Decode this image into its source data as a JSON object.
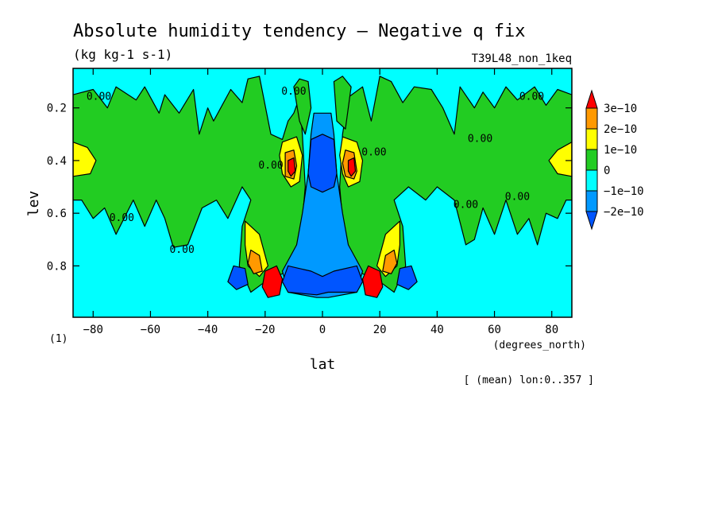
{
  "chart_data": {
    "type": "heatmap",
    "title": "Absolute humidity tendency — Negative q fix",
    "subtitle": "(kg kg-1 s-1)",
    "dataset_label": "T39L48_non_1keq",
    "xlabel": "lat",
    "x_units": "(degrees_north)",
    "ylabel": "lev",
    "y_units": "(1)",
    "region_note": "[ (mean) lon:0..357 ]",
    "xlim": [
      -87,
      87
    ],
    "ylim": [
      0.05,
      0.995
    ],
    "y_inverted": true,
    "x_ticks": [
      -80,
      -60,
      -40,
      -20,
      0,
      20,
      40,
      60,
      80
    ],
    "y_ticks": [
      0.2,
      0.4,
      0.6,
      0.8
    ],
    "x_tick_labels": [
      "−80",
      "−60",
      "−40",
      "−20",
      "0",
      "20",
      "40",
      "60",
      "80"
    ],
    "y_tick_labels": [
      "0.2",
      "0.4",
      "0.6",
      "0.8"
    ],
    "contour_label": "0.00",
    "colorbar": {
      "labels": [
        "3e−10",
        "2e−10",
        "1e−10",
        "0",
        "−1e−10",
        "−2e−10"
      ],
      "colors": [
        "#ff0000",
        "#ff9900",
        "#ffff00",
        "#22cc22",
        "#00ffff",
        "#0099ff",
        "#0055ff"
      ]
    },
    "background_level_color": "#00ffff",
    "regions": [
      {
        "level": "positive",
        "color": "#22cc22",
        "points": [
          [
            -87,
            0.15
          ],
          [
            -80,
            0.13
          ],
          [
            -75,
            0.2
          ],
          [
            -72,
            0.12
          ],
          [
            -65,
            0.17
          ],
          [
            -62,
            0.12
          ],
          [
            -57,
            0.22
          ],
          [
            -55,
            0.15
          ],
          [
            -50,
            0.22
          ],
          [
            -45,
            0.13
          ],
          [
            -43,
            0.3
          ],
          [
            -40,
            0.2
          ],
          [
            -38,
            0.25
          ],
          [
            -32,
            0.13
          ],
          [
            -28,
            0.18
          ],
          [
            -26,
            0.09
          ],
          [
            -22,
            0.08
          ],
          [
            -18,
            0.3
          ],
          [
            -14,
            0.32
          ],
          [
            -12,
            0.25
          ],
          [
            -10,
            0.22
          ],
          [
            -8,
            0.16
          ],
          [
            -7,
            0.3
          ],
          [
            -6,
            0.5
          ],
          [
            -8,
            0.75
          ],
          [
            -12,
            0.82
          ],
          [
            -20,
            0.86
          ],
          [
            -25,
            0.9
          ],
          [
            -29,
            0.8
          ],
          [
            -28,
            0.65
          ],
          [
            -25,
            0.55
          ],
          [
            -28,
            0.5
          ],
          [
            -33,
            0.62
          ],
          [
            -37,
            0.55
          ],
          [
            -42,
            0.58
          ],
          [
            -47,
            0.72
          ],
          [
            -52,
            0.73
          ],
          [
            -55,
            0.62
          ],
          [
            -58,
            0.55
          ],
          [
            -62,
            0.65
          ],
          [
            -66,
            0.55
          ],
          [
            -72,
            0.68
          ],
          [
            -76,
            0.58
          ],
          [
            -80,
            0.62
          ],
          [
            -84,
            0.55
          ],
          [
            -87,
            0.55
          ]
        ]
      },
      {
        "level": "positive",
        "color": "#22cc22",
        "points": [
          [
            87,
            0.15
          ],
          [
            82,
            0.13
          ],
          [
            78,
            0.19
          ],
          [
            74,
            0.12
          ],
          [
            68,
            0.17
          ],
          [
            64,
            0.12
          ],
          [
            60,
            0.2
          ],
          [
            56,
            0.14
          ],
          [
            53,
            0.2
          ],
          [
            48,
            0.12
          ],
          [
            46,
            0.3
          ],
          [
            42,
            0.2
          ],
          [
            38,
            0.13
          ],
          [
            32,
            0.12
          ],
          [
            28,
            0.18
          ],
          [
            24,
            0.1
          ],
          [
            20,
            0.08
          ],
          [
            17,
            0.25
          ],
          [
            14,
            0.12
          ],
          [
            9,
            0.16
          ],
          [
            7,
            0.3
          ],
          [
            6,
            0.5
          ],
          [
            8,
            0.75
          ],
          [
            12,
            0.82
          ],
          [
            20,
            0.86
          ],
          [
            25,
            0.9
          ],
          [
            29,
            0.8
          ],
          [
            28,
            0.65
          ],
          [
            25,
            0.55
          ],
          [
            30,
            0.5
          ],
          [
            36,
            0.55
          ],
          [
            40,
            0.5
          ],
          [
            46,
            0.55
          ],
          [
            50,
            0.72
          ],
          [
            53,
            0.7
          ],
          [
            56,
            0.58
          ],
          [
            60,
            0.68
          ],
          [
            64,
            0.55
          ],
          [
            68,
            0.68
          ],
          [
            72,
            0.62
          ],
          [
            75,
            0.72
          ],
          [
            78,
            0.6
          ],
          [
            82,
            0.62
          ],
          [
            85,
            0.55
          ],
          [
            87,
            0.55
          ]
        ]
      },
      {
        "level": "positive",
        "color": "#22cc22",
        "points": [
          [
            -10,
            0.12
          ],
          [
            -8,
            0.09
          ],
          [
            -5,
            0.1
          ],
          [
            -4,
            0.2
          ],
          [
            -6,
            0.3
          ],
          [
            -8,
            0.25
          ]
        ]
      },
      {
        "level": "positive",
        "color": "#22cc22",
        "points": [
          [
            4,
            0.1
          ],
          [
            7,
            0.08
          ],
          [
            10,
            0.12
          ],
          [
            8,
            0.28
          ],
          [
            5,
            0.25
          ]
        ]
      },
      {
        "level": "1e-10",
        "color": "#ffff00",
        "points": [
          [
            -87,
            0.33
          ],
          [
            -82,
            0.35
          ],
          [
            -79,
            0.4
          ],
          [
            -81,
            0.45
          ],
          [
            -87,
            0.46
          ]
        ]
      },
      {
        "level": "1e-10",
        "color": "#ffff00",
        "points": [
          [
            87,
            0.33
          ],
          [
            82,
            0.36
          ],
          [
            79,
            0.4
          ],
          [
            82,
            0.45
          ],
          [
            87,
            0.46
          ]
        ]
      },
      {
        "level": "1e-10",
        "color": "#ffff00",
        "points": [
          [
            -14,
            0.33
          ],
          [
            -9,
            0.31
          ],
          [
            -7,
            0.38
          ],
          [
            -8,
            0.48
          ],
          [
            -11,
            0.5
          ],
          [
            -14,
            0.45
          ],
          [
            -15,
            0.38
          ]
        ]
      },
      {
        "level": "1e-10",
        "color": "#ffff00",
        "points": [
          [
            7,
            0.31
          ],
          [
            12,
            0.33
          ],
          [
            14,
            0.4
          ],
          [
            13,
            0.48
          ],
          [
            9,
            0.5
          ],
          [
            7,
            0.45
          ],
          [
            6,
            0.38
          ]
        ]
      },
      {
        "level": "1e-10",
        "color": "#ffff00",
        "points": [
          [
            -27,
            0.63
          ],
          [
            -22,
            0.68
          ],
          [
            -19,
            0.8
          ],
          [
            -22,
            0.84
          ],
          [
            -26,
            0.8
          ],
          [
            -27,
            0.72
          ]
        ]
      },
      {
        "level": "1e-10",
        "color": "#ffff00",
        "points": [
          [
            27,
            0.63
          ],
          [
            22,
            0.68
          ],
          [
            19,
            0.8
          ],
          [
            22,
            0.84
          ],
          [
            26,
            0.8
          ],
          [
            27,
            0.72
          ]
        ]
      },
      {
        "level": "2e-10",
        "color": "#ff9900",
        "points": [
          [
            -13,
            0.37
          ],
          [
            -10,
            0.36
          ],
          [
            -9,
            0.42
          ],
          [
            -10,
            0.47
          ],
          [
            -13,
            0.46
          ]
        ]
      },
      {
        "level": "2e-10",
        "color": "#ff9900",
        "points": [
          [
            8,
            0.36
          ],
          [
            11,
            0.37
          ],
          [
            12,
            0.44
          ],
          [
            11,
            0.47
          ],
          [
            8,
            0.46
          ],
          [
            7,
            0.41
          ]
        ]
      },
      {
        "level": "2e-10",
        "color": "#ff9900",
        "points": [
          [
            -25,
            0.74
          ],
          [
            -22,
            0.76
          ],
          [
            -21,
            0.82
          ],
          [
            -24,
            0.83
          ],
          [
            -26,
            0.79
          ]
        ]
      },
      {
        "level": "2e-10",
        "color": "#ff9900",
        "points": [
          [
            25,
            0.74
          ],
          [
            22,
            0.76
          ],
          [
            21,
            0.82
          ],
          [
            24,
            0.83
          ],
          [
            26,
            0.79
          ]
        ]
      },
      {
        "level": "3e-10",
        "color": "#ff0000",
        "points": [
          [
            -12,
            0.4
          ],
          [
            -10,
            0.39
          ],
          [
            -9.5,
            0.44
          ],
          [
            -11,
            0.46
          ],
          [
            -12,
            0.44
          ]
        ]
      },
      {
        "level": "3e-10",
        "color": "#ff0000",
        "points": [
          [
            9,
            0.4
          ],
          [
            11,
            0.39
          ],
          [
            11.5,
            0.44
          ],
          [
            10,
            0.46
          ],
          [
            9,
            0.44
          ]
        ]
      },
      {
        "level": "3e-10",
        "color": "#ff0000",
        "points": [
          [
            -20,
            0.82
          ],
          [
            -16,
            0.8
          ],
          [
            -14,
            0.85
          ],
          [
            -15,
            0.91
          ],
          [
            -19,
            0.92
          ],
          [
            -21,
            0.88
          ]
        ]
      },
      {
        "level": "3e-10",
        "color": "#ff0000",
        "points": [
          [
            20,
            0.82
          ],
          [
            16,
            0.8
          ],
          [
            14,
            0.85
          ],
          [
            15,
            0.91
          ],
          [
            19,
            0.92
          ],
          [
            21,
            0.88
          ]
        ]
      },
      {
        "level": "-1e-10",
        "color": "#0099ff",
        "points": [
          [
            -4,
            0.3
          ],
          [
            -3,
            0.22
          ],
          [
            3,
            0.22
          ],
          [
            4,
            0.3
          ],
          [
            5,
            0.45
          ],
          [
            7,
            0.6
          ],
          [
            9,
            0.72
          ],
          [
            14,
            0.82
          ],
          [
            12,
            0.9
          ],
          [
            2,
            0.92
          ],
          [
            -2,
            0.92
          ],
          [
            -12,
            0.9
          ],
          [
            -14,
            0.82
          ],
          [
            -9,
            0.72
          ],
          [
            -7,
            0.6
          ],
          [
            -5,
            0.45
          ]
        ]
      },
      {
        "level": "-2e-10",
        "color": "#0055ff",
        "points": [
          [
            -4,
            0.32
          ],
          [
            0,
            0.3
          ],
          [
            4,
            0.32
          ],
          [
            5,
            0.45
          ],
          [
            4,
            0.5
          ],
          [
            0,
            0.52
          ],
          [
            -4,
            0.5
          ],
          [
            -5,
            0.45
          ]
        ]
      },
      {
        "level": "-2e-10",
        "color": "#0055ff",
        "points": [
          [
            -12,
            0.8
          ],
          [
            -4,
            0.82
          ],
          [
            0,
            0.84
          ],
          [
            4,
            0.82
          ],
          [
            12,
            0.8
          ],
          [
            14,
            0.86
          ],
          [
            12,
            0.9
          ],
          [
            2,
            0.9
          ],
          [
            -2,
            0.91
          ],
          [
            -12,
            0.9
          ],
          [
            -14,
            0.86
          ]
        ]
      },
      {
        "level": "-2e-10",
        "color": "#0055ff",
        "points": [
          [
            -31,
            0.8
          ],
          [
            -27,
            0.81
          ],
          [
            -26,
            0.87
          ],
          [
            -30,
            0.89
          ],
          [
            -33,
            0.86
          ]
        ]
      },
      {
        "level": "-2e-10",
        "color": "#0055ff",
        "points": [
          [
            27,
            0.81
          ],
          [
            31,
            0.8
          ],
          [
            33,
            0.86
          ],
          [
            30,
            0.89
          ],
          [
            26,
            0.87
          ]
        ]
      }
    ],
    "contour_label_positions": [
      [
        -78,
        0.17
      ],
      [
        -70,
        0.63
      ],
      [
        -49,
        0.75
      ],
      [
        -18,
        0.43
      ],
      [
        -10,
        0.15
      ],
      [
        18,
        0.38
      ],
      [
        50,
        0.58
      ],
      [
        55,
        0.33
      ],
      [
        68,
        0.55
      ],
      [
        73,
        0.17
      ]
    ]
  }
}
